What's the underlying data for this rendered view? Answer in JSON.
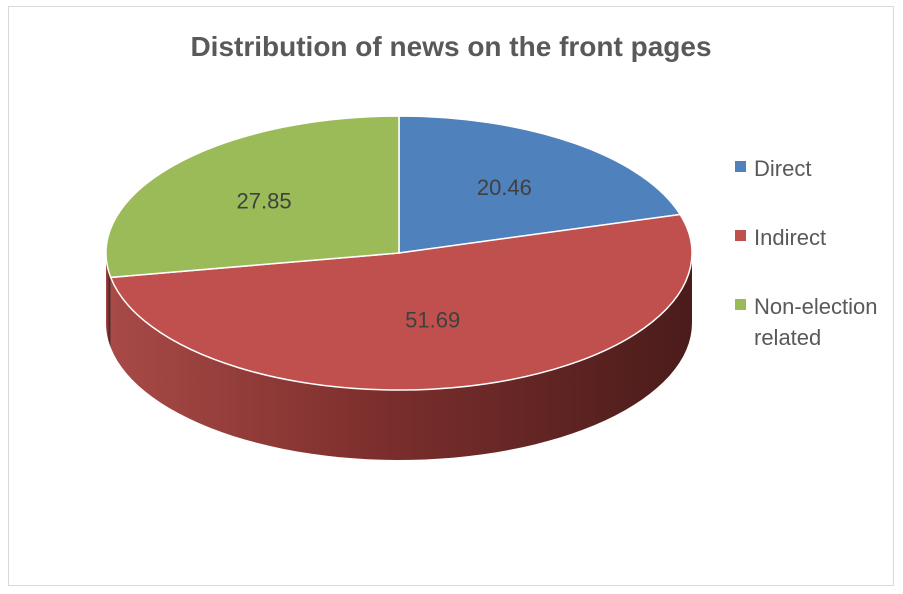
{
  "chart_data": {
    "type": "pie",
    "title": "Distribution of news on the front pages",
    "categories": [
      "Direct",
      "Indirect",
      "Non-election related"
    ],
    "values": [
      20.46,
      51.69,
      27.85
    ],
    "colors": [
      "#4f81bd",
      "#c0504d",
      "#9bbb59"
    ],
    "data_labels": [
      "20.46",
      "51.69",
      "27.85"
    ],
    "style": "3d",
    "legend_position": "right"
  }
}
